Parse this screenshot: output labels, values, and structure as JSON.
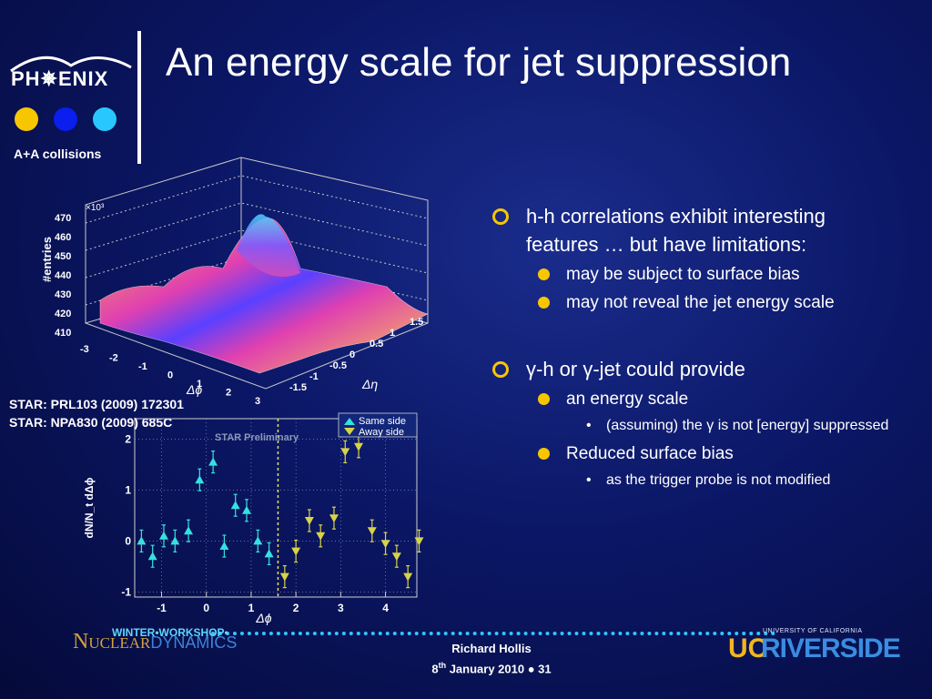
{
  "logo": {
    "word": "PH✵ENIX",
    "dot_colors": [
      "#f7c600",
      "#0a1eee",
      "#28c8ff"
    ],
    "caption": "A+A collisions"
  },
  "slide": {
    "title": "An energy scale for jet suppression"
  },
  "references": [
    "STAR: PRL103 (2009) 172301",
    "STAR: NPA830 (2009) 685C"
  ],
  "surface_plot": {
    "y_axis_label": "#entries",
    "exponent": "×10³",
    "y_ticks": [
      "470",
      "460",
      "450",
      "440",
      "430",
      "420",
      "410"
    ],
    "phi_ticks": [
      "-3",
      "-2",
      "-1",
      "0",
      "1",
      "2",
      "3"
    ],
    "eta_ticks": [
      "-1.5",
      "-1",
      "-0.5",
      "0",
      "0.5",
      "1",
      "1.5"
    ],
    "phi_label": "Δϕ",
    "eta_label": "Δη"
  },
  "chart_data": {
    "type": "scatter",
    "xlabel": "Δϕ",
    "ylabel": "dN/N_t dΔϕ",
    "annotation": "STAR Preliminary",
    "xlim": [
      -1.6,
      4.7
    ],
    "ylim": [
      -1.1,
      2.4
    ],
    "x_ticks": [
      "-1",
      "0",
      "1",
      "2",
      "3",
      "4"
    ],
    "y_ticks": [
      "-1",
      "0",
      "1",
      "2"
    ],
    "legend_position": "top-right",
    "series": [
      {
        "name": "Same side",
        "color": "#37e0e0",
        "marker": "triangle-up",
        "points": [
          [
            -1.45,
            0.0
          ],
          [
            -1.2,
            -0.3
          ],
          [
            -0.95,
            0.1
          ],
          [
            -0.7,
            0.0
          ],
          [
            -0.4,
            0.2
          ],
          [
            -0.15,
            1.2
          ],
          [
            0.15,
            1.55
          ],
          [
            0.4,
            -0.1
          ],
          [
            0.65,
            0.7
          ],
          [
            0.9,
            0.6
          ],
          [
            1.15,
            0.0
          ],
          [
            1.4,
            -0.25
          ]
        ]
      },
      {
        "name": "Away side",
        "color": "#d8d24a",
        "marker": "triangle-down",
        "points": [
          [
            1.75,
            -0.7
          ],
          [
            2.0,
            -0.2
          ],
          [
            2.3,
            0.4
          ],
          [
            2.55,
            0.1
          ],
          [
            2.85,
            0.45
          ],
          [
            3.1,
            1.75
          ],
          [
            3.4,
            1.85
          ],
          [
            3.7,
            0.2
          ],
          [
            4.0,
            -0.05
          ],
          [
            4.25,
            -0.3
          ],
          [
            4.5,
            -0.7
          ],
          [
            4.75,
            0.0
          ]
        ]
      }
    ]
  },
  "bullets": {
    "b1": "h-h correlations exhibit interesting features … but have limitations:",
    "b1_sub1": "may be subject to surface bias",
    "b1_sub2": "may not reveal the jet energy scale",
    "b2_gamma": "γ",
    "b2_mid": "-h or ",
    "b2_end": "-jet could provide",
    "b2_sub1": "an energy scale",
    "b2_sub1_sub_pre": "(assuming) the ",
    "b2_sub1_sub_post": " is not [energy] suppressed",
    "b2_sub2": "Reduced surface bias",
    "b2_sub2_sub": "as the trigger probe is not modified"
  },
  "footer": {
    "workshop": "WINTER•WORKSHOP•",
    "nd_n": "N",
    "nd_uclear": "UCLEAR",
    "nd_dyn": "DYNAMICS",
    "presenter": "Richard Hollis",
    "date_pre": "8",
    "date_sup": "th",
    "date_post": " January 2010 ● 31",
    "ucr_top": "UNIVERSITY OF CALIFORNIA",
    "ucr_uc": "UC",
    "ucr_riverside": "RIVERSIDE"
  }
}
